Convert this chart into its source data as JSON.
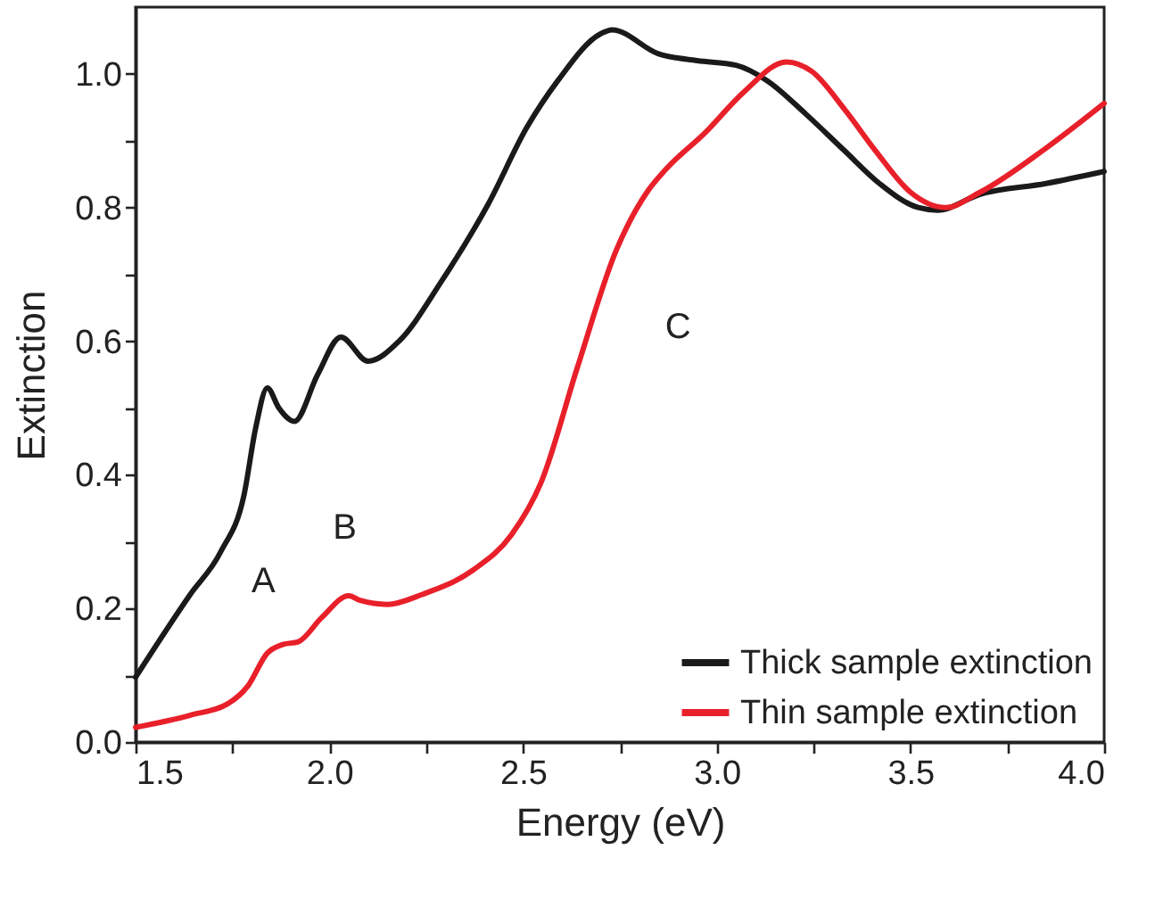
{
  "chart_data": {
    "type": "line",
    "xlabel": "Energy (eV)",
    "ylabel": "Extinction",
    "xlim": [
      1.5,
      4.0
    ],
    "ylim": [
      0,
      1.1
    ],
    "xticks": [
      1.5,
      {
        "value": 1.75,
        "label": null
      },
      {
        "value": 2,
        "label": "2.0"
      },
      {
        "value": 2.25,
        "label": null
      },
      2.5,
      {
        "value": 2.75,
        "label": null
      },
      {
        "value": 3,
        "label": "3.0"
      },
      {
        "value": 3.25,
        "label": null
      },
      3.5,
      {
        "value": 3.75,
        "label": null
      },
      {
        "value": 4,
        "label": "4.0"
      }
    ],
    "yticks": [
      {
        "value": 0,
        "label": "0.0"
      },
      {
        "value": 0.1,
        "label": null
      },
      0.2,
      {
        "value": 0.3,
        "label": null
      },
      0.4,
      {
        "value": 0.5,
        "label": null
      },
      0.6,
      {
        "value": 0.7,
        "label": null
      },
      0.8,
      {
        "value": 0.9,
        "label": null
      },
      {
        "value": 1,
        "label": "1.0"
      }
    ],
    "legend": "bottom right",
    "grid": false,
    "line_style": "solid",
    "marker": "none",
    "series": [
      {
        "name": "Thick sample extinction",
        "color": "#1a1a1a",
        "x": [
          1.5,
          1.64,
          1.72,
          1.78,
          1.81,
          1.84,
          1.87,
          1.91,
          1.97,
          2.03,
          2.1,
          2.18,
          2.29,
          2.41,
          2.51,
          2.59,
          2.7,
          2.73,
          2.85,
          2.95,
          3.05,
          3.13,
          3.23,
          3.33,
          3.42,
          3.52,
          3.57,
          3.68,
          3.85,
          4.0
        ],
        "values": [
          0.097,
          0.22,
          0.285,
          0.37,
          0.47,
          0.53,
          0.5,
          0.48,
          0.55,
          0.606,
          0.57,
          0.6,
          0.69,
          0.805,
          0.92,
          0.99,
          1.06,
          1.066,
          1.03,
          1.02,
          1.013,
          0.99,
          0.94,
          0.885,
          0.836,
          0.8,
          0.796,
          0.82,
          0.836,
          0.854
        ]
      },
      {
        "name": "Thin sample extinction",
        "color": "#e8202a",
        "x": [
          1.5,
          1.64,
          1.74,
          1.79,
          1.84,
          1.88,
          1.92,
          1.98,
          2.05,
          2.08,
          2.15,
          2.24,
          2.37,
          2.47,
          2.547,
          2.64,
          2.74,
          2.82,
          2.87,
          2.97,
          3.07,
          3.18,
          3.245,
          3.33,
          3.41,
          3.5,
          3.59,
          3.68,
          3.85,
          4.0
        ],
        "values": [
          0.022,
          0.04,
          0.058,
          0.084,
          0.133,
          0.146,
          0.15,
          0.186,
          0.219,
          0.212,
          0.206,
          0.221,
          0.257,
          0.31,
          0.389,
          0.56,
          0.735,
          0.823,
          0.858,
          0.912,
          0.973,
          1.018,
          1.004,
          0.947,
          0.885,
          0.823,
          0.8,
          0.823,
          0.889,
          0.956
        ]
      }
    ],
    "annotations": [
      "A",
      "B",
      "C"
    ]
  }
}
